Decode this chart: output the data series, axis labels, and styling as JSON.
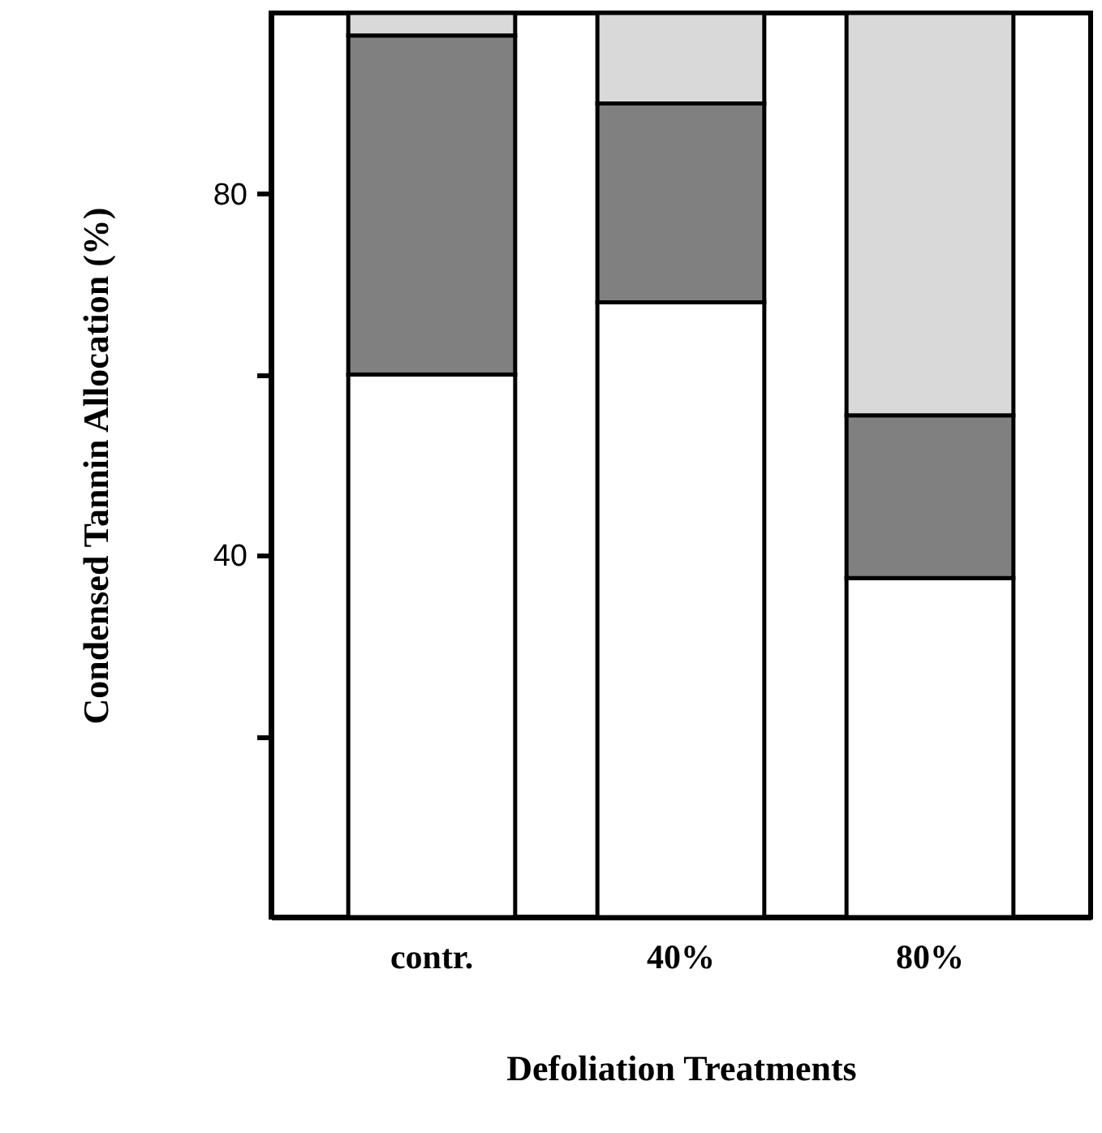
{
  "chart_data": {
    "type": "bar",
    "stacked": true,
    "xlabel": "Defoliation Treatments",
    "ylabel": "Condensed Tannin Allocation (%)",
    "categories": [
      "contr.",
      "40%",
      "80%"
    ],
    "series": [
      {
        "color": "#ffffff",
        "values": [
          60,
          68,
          37.5
        ]
      },
      {
        "color": "#808080",
        "values": [
          37.5,
          22,
          18
        ]
      },
      {
        "color": "#d9d9d9",
        "values": [
          2.5,
          10,
          44.5
        ]
      }
    ],
    "ylim": [
      0,
      100
    ],
    "yticks": [
      {
        "value": 20,
        "label": null
      },
      40,
      {
        "value": 60,
        "label": null
      },
      80
    ],
    "grid": false
  }
}
